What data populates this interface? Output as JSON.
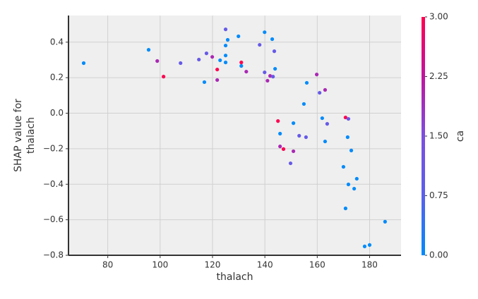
{
  "chart_data": {
    "type": "scatter",
    "xlabel": "thalach",
    "ylabel": [
      "SHAP value for",
      "thalach"
    ],
    "colorbar_label": "ca",
    "xlim": [
      65,
      192
    ],
    "xticks": [
      80,
      100,
      120,
      140,
      160,
      180
    ],
    "ylim": [
      -0.8,
      0.55
    ],
    "yticks": [
      {
        "value": -0.8,
        "label": "−0.8"
      },
      {
        "value": -0.6,
        "label": "−0.6"
      },
      {
        "value": -0.4,
        "label": "−0.4"
      },
      {
        "value": -0.2,
        "label": "−0.2"
      },
      {
        "value": 0,
        "label": "0.0"
      },
      {
        "value": 0.2,
        "label": "0.2"
      },
      {
        "value": 0.4,
        "label": "0.4"
      }
    ],
    "clim": [
      0,
      3
    ],
    "cticks": [
      {
        "value": 0,
        "label": "0.00"
      },
      {
        "value": 0.75,
        "label": "0.75"
      },
      {
        "value": 1.5,
        "label": "1.50"
      },
      {
        "value": 2.25,
        "label": "2.25"
      },
      {
        "value": 3,
        "label": "3.00"
      }
    ],
    "colorscale": [
      "#008bfb",
      "#5a60ec",
      "#7d4fde",
      "#c1149f",
      "#ff0051"
    ],
    "grid": true,
    "series": [
      {
        "x": [
          70.8,
          95.6,
          98.9,
          101.3,
          107.8,
          114.8,
          117.7,
          116.9,
          119.9,
          121.8,
          121.8,
          122.9,
          125.0,
          125.0,
          125.0,
          125.0,
          125.8,
          129.9,
          131.0,
          131.0,
          132.9,
          138.0,
          139.9,
          139.9,
          141.0,
          142.0,
          143.1,
          142.8,
          143.6,
          143.9,
          145.0,
          145.8,
          145.8,
          147.1,
          149.8,
          150.9,
          150.9,
          153.1,
          154.9,
          155.7,
          156.0,
          159.8,
          160.9,
          163.0,
          161.9,
          163.0,
          163.8,
          170.0,
          170.8,
          171.9,
          170.8,
          171.6,
          171.9,
          173.0,
          174.1,
          175.1,
          178.1,
          180.0,
          185.9
        ],
        "values": [
          0.282,
          0.357,
          0.294,
          0.206,
          0.282,
          0.302,
          0.337,
          0.175,
          0.317,
          0.246,
          0.187,
          0.298,
          0.472,
          0.381,
          0.325,
          0.286,
          0.413,
          0.433,
          0.286,
          0.266,
          0.234,
          0.385,
          0.456,
          0.23,
          0.183,
          0.21,
          0.206,
          0.417,
          0.349,
          0.25,
          -0.044,
          -0.115,
          -0.187,
          -0.202,
          -0.282,
          -0.056,
          -0.214,
          -0.127,
          0.052,
          -0.135,
          0.171,
          0.218,
          0.115,
          0.131,
          -0.028,
          -0.159,
          -0.06,
          -0.302,
          -0.024,
          -0.032,
          -0.536,
          -0.135,
          -0.401,
          -0.21,
          -0.425,
          -0.369,
          -0.75,
          -0.742,
          -0.611
        ],
        "ca": [
          0,
          0,
          2,
          3,
          1,
          1,
          1,
          0,
          2,
          3,
          2,
          0,
          1,
          0,
          0,
          0,
          0,
          0,
          3,
          0,
          2,
          1,
          0,
          1,
          2,
          2,
          1,
          0,
          1,
          0,
          3,
          0,
          2,
          3,
          1,
          0,
          2,
          1,
          0,
          1,
          0,
          2,
          1,
          2,
          0,
          0,
          1,
          0,
          3,
          1,
          0,
          0,
          0,
          0,
          0,
          0,
          0,
          0,
          0
        ]
      }
    ]
  }
}
